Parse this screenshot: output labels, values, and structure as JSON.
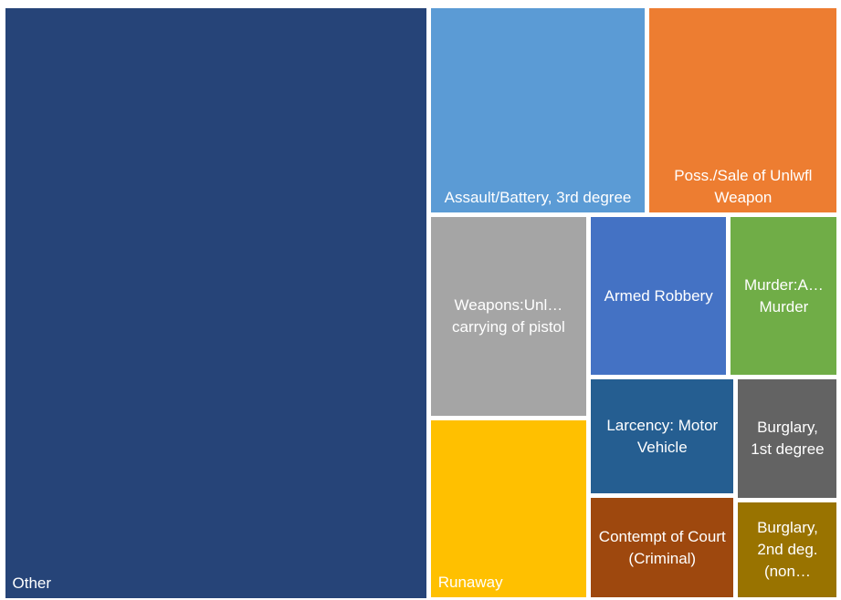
{
  "chart_data": {
    "type": "treemap",
    "categories": [
      "Other",
      "Assault/Battery, 3rd degree",
      "Poss./Sale of Unlwfl Weapon",
      "Weapons:Unl… carrying of pistol",
      "Runaway",
      "Armed Robbery",
      "Murder:A… Murder",
      "Larcency: Motor Vehicle",
      "Contempt of Court (Criminal)",
      "Burglary, 1st degree",
      "Burglary, 2nd deg. (non…"
    ],
    "values": [
      2935,
      531,
      466,
      378,
      337,
      263,
      208,
      203,
      178,
      148,
      119
    ],
    "colors": [
      "#264478",
      "#5b9bd5",
      "#ed7d31",
      "#a5a5a5",
      "#ffc000",
      "#4472c4",
      "#70ad47",
      "#255e91",
      "#9e480e",
      "#636363",
      "#997300"
    ]
  }
}
